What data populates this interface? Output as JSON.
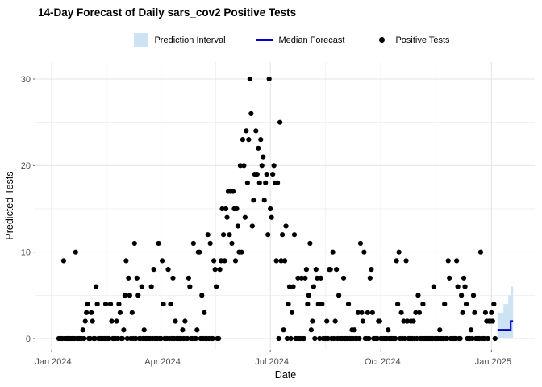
{
  "title": "14-Day Forecast of Daily sars_cov2 Positive Tests",
  "legend": {
    "prediction_interval": "Prediction Interval",
    "median_forecast": "Median Forecast",
    "positive_tests": "Positive Tests"
  },
  "colors": {
    "prediction_interval": "#cde3f3",
    "median_forecast": "#0000cd",
    "points": "#000000",
    "grid_major": "#e4e4e4",
    "grid_minor": "#f1f1f1",
    "tick_label": "#4d4d4d",
    "tick_mark": "#666666"
  },
  "chart_data": {
    "type": "scatter",
    "title": "14-Day Forecast of Daily sars_cov2 Positive Tests",
    "xlabel": "Date",
    "ylabel": "Predicted Tests",
    "x_base_date": "2024-01-01",
    "x_tick_labels": [
      "Jan 2024",
      "Apr 2024",
      "Jul 2024",
      "Oct 2024",
      "Jan 2025"
    ],
    "x_tick_days": [
      0,
      91,
      182,
      274,
      366
    ],
    "x_minor_days": [
      45.5,
      136.5,
      228,
      320
    ],
    "y_ticks": [
      0,
      10,
      20,
      30
    ],
    "y_minor": [
      5,
      15,
      25
    ],
    "ylim": [
      0,
      30
    ],
    "grid": true,
    "legend_position": "top",
    "observed": {
      "name": "Positive Tests",
      "start_day": 6,
      "values": [
        0,
        0,
        0,
        0,
        9,
        0,
        0,
        0,
        0,
        0,
        0,
        0,
        0,
        0,
        10,
        0,
        0,
        0,
        0,
        0,
        1,
        0,
        2,
        3,
        4,
        0,
        0,
        3,
        2,
        0,
        0,
        6,
        4,
        0,
        0,
        0,
        0,
        0,
        0,
        4,
        0,
        0,
        0,
        4,
        2,
        0,
        0,
        0,
        2,
        0,
        4,
        3,
        0,
        0,
        1,
        5,
        9,
        0,
        7,
        5,
        0,
        3,
        0,
        11,
        0,
        7,
        5,
        0,
        0,
        6,
        0,
        1,
        0,
        0,
        0,
        0,
        0,
        6,
        0,
        8,
        0,
        0,
        0,
        11,
        0,
        0,
        9,
        4,
        0,
        0,
        0,
        8,
        0,
        4,
        0,
        7,
        0,
        2,
        0,
        0,
        0,
        0,
        0,
        1,
        0,
        2,
        0,
        0,
        7,
        6,
        0,
        0,
        11,
        0,
        0,
        1,
        10,
        10,
        0,
        5,
        0,
        3,
        0,
        0,
        12,
        0,
        11,
        0,
        0,
        9,
        8,
        6,
        0,
        0,
        8,
        9,
        15,
        12,
        9,
        15,
        14,
        17,
        12,
        17,
        11,
        17,
        15,
        9,
        15,
        13,
        10,
        20,
        10,
        23,
        20,
        14,
        24,
        18,
        23,
        30,
        26,
        13,
        16,
        19,
        24,
        19,
        22,
        18,
        23,
        20,
        21,
        16,
        18,
        19,
        12,
        30,
        15,
        14,
        19,
        20,
        18,
        9,
        18,
        0,
        25,
        9,
        12,
        1,
        9,
        13,
        0,
        4,
        6,
        0,
        3,
        6,
        12,
        0,
        0,
        7,
        0,
        0,
        7,
        0,
        0,
        7,
        8,
        4,
        5,
        11,
        1,
        2,
        6,
        0,
        8,
        7,
        4,
        0,
        7,
        4,
        0,
        0,
        0,
        2,
        0,
        8,
        8,
        0,
        10,
        0,
        2,
        8,
        0,
        5,
        0,
        0,
        0,
        7,
        0,
        0,
        0,
        4,
        0,
        0,
        1,
        0,
        1,
        0,
        0,
        3,
        0,
        11,
        3,
        2,
        10,
        0,
        0,
        3,
        0,
        7,
        8,
        3,
        0,
        0,
        0,
        0,
        2,
        2,
        0,
        0,
        0,
        0,
        0,
        0,
        1,
        0,
        0,
        0,
        0,
        0,
        0,
        9,
        4,
        10,
        0,
        3,
        0,
        2,
        0,
        9,
        2,
        0,
        0,
        2,
        0,
        2,
        0,
        3,
        0,
        5,
        3,
        0,
        0,
        4,
        0,
        0,
        0,
        0,
        0,
        0,
        0,
        0,
        6,
        0,
        0,
        0,
        0,
        1,
        0,
        0,
        0,
        4,
        0,
        0,
        9,
        7,
        0,
        0,
        0,
        0,
        0,
        9,
        6,
        0,
        0,
        5,
        3,
        7,
        6,
        4,
        0,
        0,
        0,
        1,
        0,
        5,
        3,
        0,
        0,
        0,
        0,
        10,
        0,
        0,
        0,
        3,
        2,
        0,
        2,
        2,
        3,
        2,
        4,
        0
      ]
    },
    "forecast": {
      "name": "Median Forecast",
      "interval_name": "Prediction Interval",
      "start_day": 371,
      "start_date": "2025-01-06",
      "median": [
        1,
        1,
        1,
        1,
        1,
        1,
        1,
        1,
        1,
        1,
        1,
        2,
        2,
        2
      ],
      "upper": [
        3,
        3,
        3,
        3,
        3,
        4,
        4,
        4,
        4,
        5,
        5,
        6,
        6,
        6
      ],
      "lower": [
        0,
        0,
        0,
        0,
        0,
        0,
        0,
        0,
        0,
        0,
        0,
        0,
        0,
        0
      ]
    }
  }
}
